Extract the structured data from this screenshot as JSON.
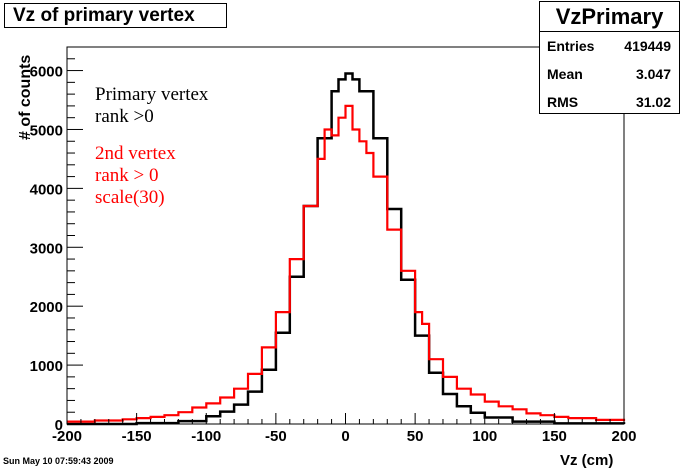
{
  "title": "Vz of primary vertex",
  "stats": {
    "name": "VzPrimary",
    "rows": [
      {
        "label": "Entries",
        "value": "419449"
      },
      {
        "label": "Mean",
        "value": "3.047"
      },
      {
        "label": "RMS",
        "value": "31.02"
      }
    ]
  },
  "legend_text": {
    "primary_line1": "Primary vertex",
    "primary_line2": "rank >0",
    "second_line1": "2nd vertex",
    "second_line2": "rank > 0",
    "second_line3": "scale(30)"
  },
  "timestamp": "Sun May 10 07:59:43 2009",
  "colors": {
    "primary": "#000000",
    "second": "#ff0000",
    "axis": "#000000"
  },
  "chart_data": {
    "type": "line",
    "title": "Vz of primary vertex",
    "xlabel": "Vz (cm)",
    "ylabel": "# of counts",
    "xlim": [
      -200,
      200
    ],
    "ylim": [
      0,
      6400
    ],
    "xticks": [
      -200,
      -150,
      -100,
      -50,
      0,
      50,
      100,
      150,
      200
    ],
    "yticks": [
      0,
      1000,
      2000,
      3000,
      4000,
      5000,
      6000
    ],
    "xtick_labels": [
      "-200",
      "-150",
      "-100",
      "-50",
      "0",
      "50",
      "100",
      "150",
      "200"
    ],
    "ytick_labels": [
      "0",
      "1000",
      "2000",
      "3000",
      "4000",
      "5000",
      "6000"
    ],
    "grid": false,
    "series": [
      {
        "name": "Primary vertex rank >0",
        "color": "#000000",
        "x": [
          -200,
          -150,
          -120,
          -100,
          -90,
          -80,
          -70,
          -60,
          -50,
          -40,
          -30,
          -20,
          -10,
          -5,
          0,
          5,
          10,
          20,
          30,
          40,
          50,
          60,
          70,
          80,
          90,
          100,
          120,
          150,
          200
        ],
        "y": [
          0,
          15,
          50,
          130,
          210,
          330,
          550,
          920,
          1550,
          2500,
          3700,
          4850,
          5650,
          5850,
          5950,
          5850,
          5650,
          4850,
          3650,
          2450,
          1500,
          870,
          510,
          300,
          190,
          110,
          40,
          10,
          0
        ]
      },
      {
        "name": "2nd vertex rank > 0 scale(30)",
        "color": "#ff0000",
        "x": [
          -200,
          -180,
          -160,
          -150,
          -140,
          -130,
          -120,
          -110,
          -100,
          -90,
          -80,
          -70,
          -60,
          -50,
          -40,
          -30,
          -20,
          -15,
          -10,
          -5,
          0,
          5,
          10,
          15,
          20,
          30,
          40,
          50,
          55,
          60,
          70,
          80,
          90,
          100,
          110,
          120,
          130,
          140,
          150,
          160,
          180,
          200
        ],
        "y": [
          40,
          60,
          80,
          100,
          120,
          150,
          200,
          280,
          350,
          450,
          600,
          850,
          1300,
          1900,
          2800,
          3700,
          4500,
          5000,
          4900,
          5200,
          5400,
          5000,
          4800,
          4600,
          4200,
          3300,
          2600,
          1900,
          1700,
          1100,
          800,
          600,
          500,
          380,
          300,
          250,
          180,
          150,
          120,
          100,
          70,
          50
        ]
      }
    ]
  }
}
